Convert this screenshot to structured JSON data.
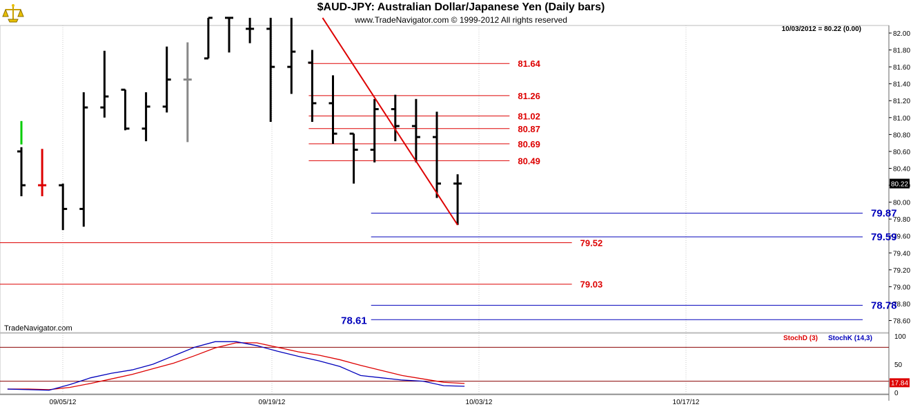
{
  "title": "$AUD-JPY:  Australian Dollar/Japanese Yen  (Daily bars)",
  "subtitle": "www.TradeNavigator.com © 1999-2012 All rights reserved",
  "readout": "10/03/2012 = 80.22 (0.00)",
  "watermark": "TradeNavigator.com",
  "colors": {
    "red": "#dd0000",
    "blue": "#0000bb",
    "bar": "#000000",
    "bar_gray": "#888888",
    "bar_green": "#00cc00",
    "grid": "#c8c8c8"
  },
  "chart_data": [
    {
      "type": "ohlc",
      "name": "price",
      "x_labels": [
        "09/05/12",
        "09/19/12",
        "10/03/12",
        "10/17/12"
      ],
      "y_ticks": [
        "82.00",
        "81.80",
        "81.60",
        "81.40",
        "81.20",
        "81.00",
        "80.80",
        "80.60",
        "80.40",
        "80.20",
        "80.00",
        "79.80",
        "79.60",
        "79.40",
        "79.20",
        "79.00",
        "78.80",
        "78.60"
      ],
      "ylim": [
        78.46,
        82.18
      ],
      "last_price_label": "80.22",
      "last_price": 80.22,
      "bars": [
        {
          "o": 80.6,
          "h": 80.65,
          "l": 80.07,
          "c": 80.2
        },
        {
          "o": 80.2,
          "h": 80.63,
          "l": 80.07,
          "c": 80.2
        },
        {
          "o": 80.2,
          "h": 80.22,
          "l": 79.67,
          "c": 79.92
        },
        {
          "o": 79.92,
          "h": 81.3,
          "l": 79.71,
          "c": 81.12
        },
        {
          "o": 81.12,
          "h": 81.79,
          "l": 81.0,
          "c": 81.25
        },
        {
          "o": 81.33,
          "h": 81.33,
          "l": 80.85,
          "c": 80.87
        },
        {
          "o": 80.87,
          "h": 81.3,
          "l": 80.72,
          "c": 81.13
        },
        {
          "o": 81.13,
          "h": 81.84,
          "l": 81.06,
          "c": 81.45
        },
        {
          "o": 81.45,
          "h": 81.89,
          "l": 80.71,
          "c": 81.45
        },
        {
          "o": 81.7,
          "h": 82.18,
          "l": 81.7,
          "c": 82.18
        },
        {
          "o": 82.18,
          "h": 82.18,
          "l": 81.77,
          "c": 82.18
        },
        {
          "o": 82.05,
          "h": 82.18,
          "l": 81.88,
          "c": 82.05
        },
        {
          "o": 82.05,
          "h": 82.18,
          "l": 80.95,
          "c": 81.6
        },
        {
          "o": 81.6,
          "h": 82.18,
          "l": 81.28,
          "c": 81.78
        },
        {
          "o": 81.65,
          "h": 81.8,
          "l": 80.95,
          "c": 81.17
        },
        {
          "o": 81.17,
          "h": 81.5,
          "l": 80.69,
          "c": 80.81
        },
        {
          "o": 80.81,
          "h": 80.81,
          "l": 80.22,
          "c": 80.62
        },
        {
          "o": 80.62,
          "h": 81.22,
          "l": 80.47,
          "c": 81.1
        },
        {
          "o": 81.1,
          "h": 81.27,
          "l": 80.72,
          "c": 80.9
        },
        {
          "o": 80.9,
          "h": 81.22,
          "l": 80.47,
          "c": 80.77
        },
        {
          "o": 80.77,
          "h": 81.07,
          "l": 80.05,
          "c": 80.22
        },
        {
          "o": 80.22,
          "h": 80.33,
          "l": 79.73,
          "c": 80.22
        }
      ],
      "trendline": {
        "from": {
          "bar": 14.5,
          "y": 82.18
        },
        "to": {
          "bar": 21,
          "y": 79.73
        }
      },
      "levels": [
        {
          "value": 81.64,
          "label": "81.64",
          "color": "red",
          "from_bar": 14,
          "to_bar": 23.5,
          "label_side": "right"
        },
        {
          "value": 81.26,
          "label": "81.26",
          "color": "red",
          "from_bar": 14,
          "to_bar": 23.5,
          "label_side": "right"
        },
        {
          "value": 81.02,
          "label": "81.02",
          "color": "red",
          "from_bar": 14,
          "to_bar": 23.5,
          "label_side": "right"
        },
        {
          "value": 80.87,
          "label": "80.87",
          "color": "red",
          "from_bar": 14,
          "to_bar": 23.5,
          "label_side": "right"
        },
        {
          "value": 80.69,
          "label": "80.69",
          "color": "red",
          "from_bar": 14,
          "to_bar": 23.5,
          "label_side": "right"
        },
        {
          "value": 80.49,
          "label": "80.49",
          "color": "red",
          "from_bar": 14,
          "to_bar": 23.5,
          "label_side": "right"
        },
        {
          "value": 79.87,
          "label": "79.87",
          "color": "blue",
          "from_bar": 17,
          "to_bar": 40.5,
          "label_side": "right"
        },
        {
          "value": 79.59,
          "label": "79.59",
          "color": "blue",
          "from_bar": 17,
          "to_bar": 40.5,
          "label_side": "right"
        },
        {
          "value": 79.52,
          "label": "79.52",
          "color": "red",
          "from_bar": -1,
          "to_bar": 26.5,
          "label_side": "right"
        },
        {
          "value": 79.03,
          "label": "79.03",
          "color": "red",
          "from_bar": -1,
          "to_bar": 26.5,
          "label_side": "right"
        },
        {
          "value": 78.78,
          "label": "78.78",
          "color": "blue",
          "from_bar": 17,
          "to_bar": 40.5,
          "label_side": "right"
        },
        {
          "value": 78.61,
          "label": "78.61",
          "color": "blue",
          "from_bar": 17,
          "to_bar": 40.5,
          "label_side": "left"
        }
      ]
    },
    {
      "type": "line",
      "name": "stochastic",
      "y_ticks": [
        "100",
        "50",
        "0"
      ],
      "ylim": [
        0,
        100
      ],
      "reference_lines": [
        80,
        20
      ],
      "last_value_label": "17.84",
      "series": [
        {
          "name": "StochD (3)",
          "color": "red",
          "values": [
            6,
            6,
            5,
            9,
            16,
            24,
            32,
            42,
            52,
            65,
            79,
            88,
            88,
            80,
            72,
            66,
            58,
            48,
            39,
            30,
            24,
            18,
            16
          ]
        },
        {
          "name": "StochK (14,3)",
          "color": "blue",
          "values": [
            6,
            5,
            4,
            14,
            26,
            34,
            40,
            50,
            65,
            80,
            90,
            90,
            83,
            73,
            64,
            56,
            46,
            30,
            26,
            22,
            20,
            12,
            11
          ]
        }
      ]
    }
  ]
}
